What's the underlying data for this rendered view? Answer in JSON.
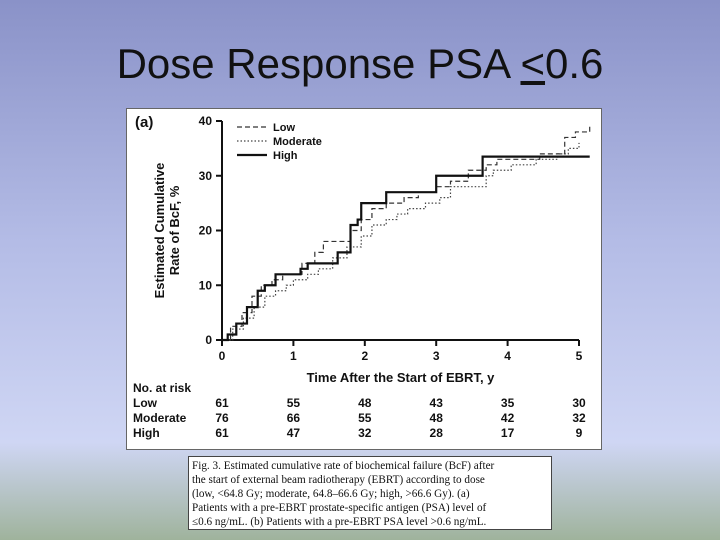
{
  "slide": {
    "title_prefix": "Dose Response PSA ",
    "title_underlined": "<",
    "title_suffix": "0.6"
  },
  "chart_data": {
    "type": "line",
    "panel_label": "(a)",
    "title": "",
    "xlabel": "Time After the Start of EBRT, y",
    "ylabel_line1": "Estimated Cumulative",
    "ylabel_line2": "Rate of BcF, %",
    "xlim": [
      0,
      5
    ],
    "ylim": [
      0,
      40
    ],
    "x_ticks": [
      "0",
      "1",
      "2",
      "3",
      "4",
      "5"
    ],
    "y_ticks": [
      "0",
      "10",
      "20",
      "30",
      "40"
    ],
    "legend_position": "top-left",
    "series": [
      {
        "name": "Low",
        "style": "dashed",
        "points": [
          [
            0,
            0
          ],
          [
            0.12,
            2.5
          ],
          [
            0.28,
            5
          ],
          [
            0.42,
            8
          ],
          [
            0.55,
            10
          ],
          [
            0.7,
            11
          ],
          [
            0.85,
            12
          ],
          [
            1.0,
            12
          ],
          [
            1.12,
            14
          ],
          [
            1.3,
            16
          ],
          [
            1.42,
            18
          ],
          [
            1.7,
            18
          ],
          [
            1.8,
            20
          ],
          [
            1.95,
            22
          ],
          [
            2.1,
            24
          ],
          [
            2.3,
            25
          ],
          [
            2.55,
            26
          ],
          [
            2.75,
            27
          ],
          [
            3.0,
            28
          ],
          [
            3.2,
            29
          ],
          [
            3.45,
            31
          ],
          [
            3.7,
            32
          ],
          [
            3.85,
            33
          ],
          [
            4.2,
            33
          ],
          [
            4.45,
            34
          ],
          [
            4.75,
            34
          ],
          [
            4.8,
            37
          ],
          [
            4.95,
            38
          ],
          [
            5.15,
            39
          ]
        ]
      },
      {
        "name": "Moderate",
        "style": "dotted",
        "points": [
          [
            0,
            0
          ],
          [
            0.15,
            2
          ],
          [
            0.3,
            4
          ],
          [
            0.45,
            6
          ],
          [
            0.6,
            8
          ],
          [
            0.75,
            9
          ],
          [
            0.9,
            10
          ],
          [
            1.0,
            11
          ],
          [
            1.2,
            12
          ],
          [
            1.35,
            13
          ],
          [
            1.55,
            15
          ],
          [
            1.75,
            17
          ],
          [
            1.95,
            19
          ],
          [
            2.1,
            21
          ],
          [
            2.3,
            22
          ],
          [
            2.45,
            23
          ],
          [
            2.6,
            24
          ],
          [
            2.85,
            25
          ],
          [
            3.05,
            26
          ],
          [
            3.2,
            28
          ],
          [
            3.5,
            28
          ],
          [
            3.7,
            30
          ],
          [
            3.8,
            31
          ],
          [
            4.05,
            32
          ],
          [
            4.4,
            33
          ],
          [
            4.7,
            34
          ],
          [
            4.85,
            35
          ],
          [
            5.0,
            36
          ]
        ]
      },
      {
        "name": "High",
        "style": "solid",
        "points": [
          [
            0,
            0
          ],
          [
            0.08,
            1
          ],
          [
            0.2,
            3
          ],
          [
            0.35,
            6
          ],
          [
            0.5,
            9
          ],
          [
            0.6,
            10
          ],
          [
            0.75,
            12
          ],
          [
            1.0,
            12
          ],
          [
            1.1,
            13
          ],
          [
            1.2,
            14
          ],
          [
            1.55,
            14
          ],
          [
            1.62,
            16
          ],
          [
            1.8,
            21
          ],
          [
            1.9,
            22
          ],
          [
            1.95,
            25
          ],
          [
            2.3,
            25
          ],
          [
            2.3,
            27
          ],
          [
            3.0,
            27
          ],
          [
            3.0,
            30
          ],
          [
            3.65,
            30
          ],
          [
            3.65,
            33.5
          ],
          [
            5.15,
            33.5
          ]
        ]
      }
    ],
    "at_risk": {
      "title": "No. at risk",
      "times": [
        0,
        1,
        2,
        3,
        4,
        5
      ],
      "rows": [
        {
          "name": "Low",
          "values": [
            "61",
            "55",
            "48",
            "43",
            "35",
            "30"
          ]
        },
        {
          "name": "Moderate",
          "values": [
            "76",
            "66",
            "55",
            "48",
            "42",
            "32"
          ]
        },
        {
          "name": "High",
          "values": [
            "61",
            "47",
            "32",
            "28",
            "17",
            "9"
          ]
        }
      ]
    }
  },
  "caption": {
    "lines": [
      "Fig. 3.  Estimated cumulative rate of biochemical failure (BcF) after",
      "the start of external beam radiotherapy (EBRT) according to dose",
      "(low, <64.8 Gy; moderate, 64.8–66.6 Gy; high, >66.6 Gy). (a)",
      "Patients with a pre-EBRT prostate-specific antigen (PSA) level of",
      "≤0.6 ng/mL. (b) Patients with a pre-EBRT PSA level >0.6 ng/mL."
    ]
  }
}
